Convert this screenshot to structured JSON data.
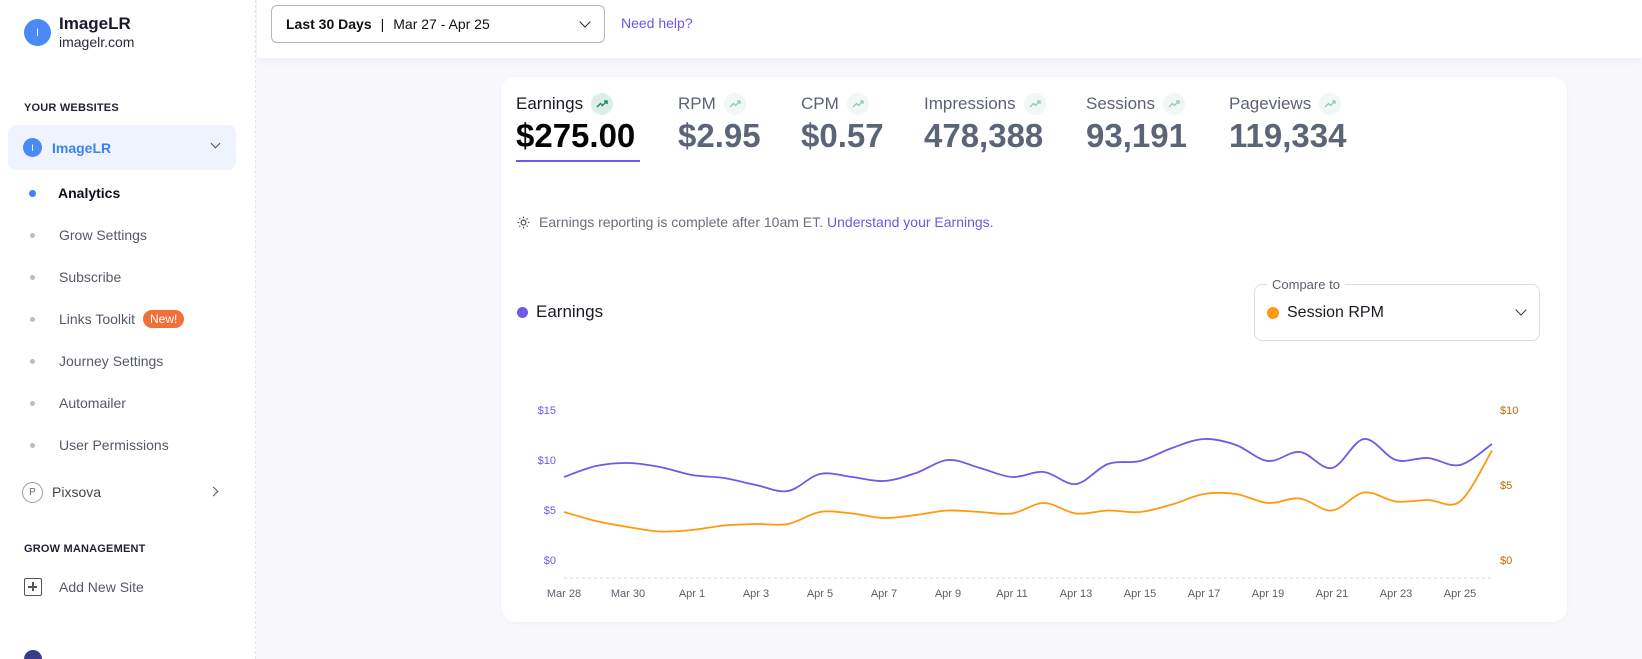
{
  "sidebar": {
    "brand": {
      "avatar_letter": "I",
      "name": "ImageLR",
      "domain": "imagelr.com"
    },
    "websites_title": "YOUR WEBSITES",
    "active_site": {
      "letter": "I",
      "name": "ImageLR"
    },
    "nav_items": [
      {
        "label": "Analytics",
        "active": true
      },
      {
        "label": "Grow Settings"
      },
      {
        "label": "Subscribe"
      },
      {
        "label": "Links Toolkit",
        "badge": "New!"
      },
      {
        "label": "Journey Settings"
      },
      {
        "label": "Automailer"
      },
      {
        "label": "User Permissions"
      }
    ],
    "other_site": {
      "letter": "P",
      "name": "Pixsova"
    },
    "management_title": "GROW MANAGEMENT",
    "add_site_label": "Add New Site"
  },
  "topbar": {
    "range_label": "Last 30 Days",
    "range_sep": "|",
    "range_dates": "Mar 27 - Apr 25",
    "help_label": "Need help?"
  },
  "metrics": [
    {
      "label": "Earnings",
      "value": "$275.00",
      "active": true
    },
    {
      "label": "RPM",
      "value": "$2.95"
    },
    {
      "label": "CPM",
      "value": "$0.57"
    },
    {
      "label": "Impressions",
      "value": "478,388"
    },
    {
      "label": "Sessions",
      "value": "93,191"
    },
    {
      "label": "Pageviews",
      "value": "119,334"
    }
  ],
  "notice": {
    "text": "Earnings reporting is complete after 10am ET.",
    "link": "Understand your Earnings."
  },
  "legend_label": "Earnings",
  "compare": {
    "label": "Compare to",
    "value": "Session RPM"
  },
  "colors": {
    "earnings": "#6d5ae8",
    "session_rpm": "#ff9a0d",
    "accent_blue": "#3b82f6",
    "badge": "#f0703a"
  },
  "chart_data": {
    "type": "line",
    "x": [
      "Mar 28",
      "Mar 29",
      "Mar 30",
      "Mar 31",
      "Apr 1",
      "Apr 2",
      "Apr 3",
      "Apr 4",
      "Apr 5",
      "Apr 6",
      "Apr 7",
      "Apr 8",
      "Apr 9",
      "Apr 10",
      "Apr 11",
      "Apr 12",
      "Apr 13",
      "Apr 14",
      "Apr 15",
      "Apr 16",
      "Apr 17",
      "Apr 18",
      "Apr 19",
      "Apr 20",
      "Apr 21",
      "Apr 22",
      "Apr 23",
      "Apr 24",
      "Apr 25",
      "Apr 26"
    ],
    "x_tick_labels": [
      "Mar 28",
      "Mar 30",
      "Apr 1",
      "Apr 3",
      "Apr 5",
      "Apr 7",
      "Apr 9",
      "Apr 11",
      "Apr 13",
      "Apr 15",
      "Apr 17",
      "Apr 19",
      "Apr 21",
      "Apr 23",
      "Apr 25"
    ],
    "series": [
      {
        "name": "Earnings",
        "axis": "left",
        "values": [
          8.3,
          9.4,
          9.7,
          9.3,
          8.5,
          8.2,
          7.5,
          6.9,
          8.6,
          8.3,
          7.9,
          8.7,
          10.0,
          9.2,
          8.3,
          8.8,
          7.6,
          9.6,
          9.9,
          11.2,
          12.1,
          11.5,
          9.9,
          10.8,
          9.2,
          12.1,
          10.0,
          10.2,
          9.5,
          11.6
        ]
      },
      {
        "name": "Session RPM",
        "axis": "right",
        "values": [
          3.2,
          2.6,
          2.2,
          1.9,
          2.0,
          2.3,
          2.4,
          2.4,
          3.2,
          3.1,
          2.8,
          3.0,
          3.3,
          3.2,
          3.1,
          3.8,
          3.1,
          3.3,
          3.2,
          3.7,
          4.4,
          4.4,
          3.8,
          4.1,
          3.3,
          4.5,
          3.9,
          4.0,
          3.9,
          7.3
        ]
      }
    ],
    "y_left": {
      "ticks": [
        "$0",
        "$5",
        "$10",
        "$15"
      ],
      "ylim": [
        0,
        15
      ]
    },
    "y_right": {
      "ticks": [
        "$0",
        "$5",
        "$10"
      ],
      "ylim": [
        0,
        10
      ]
    }
  }
}
